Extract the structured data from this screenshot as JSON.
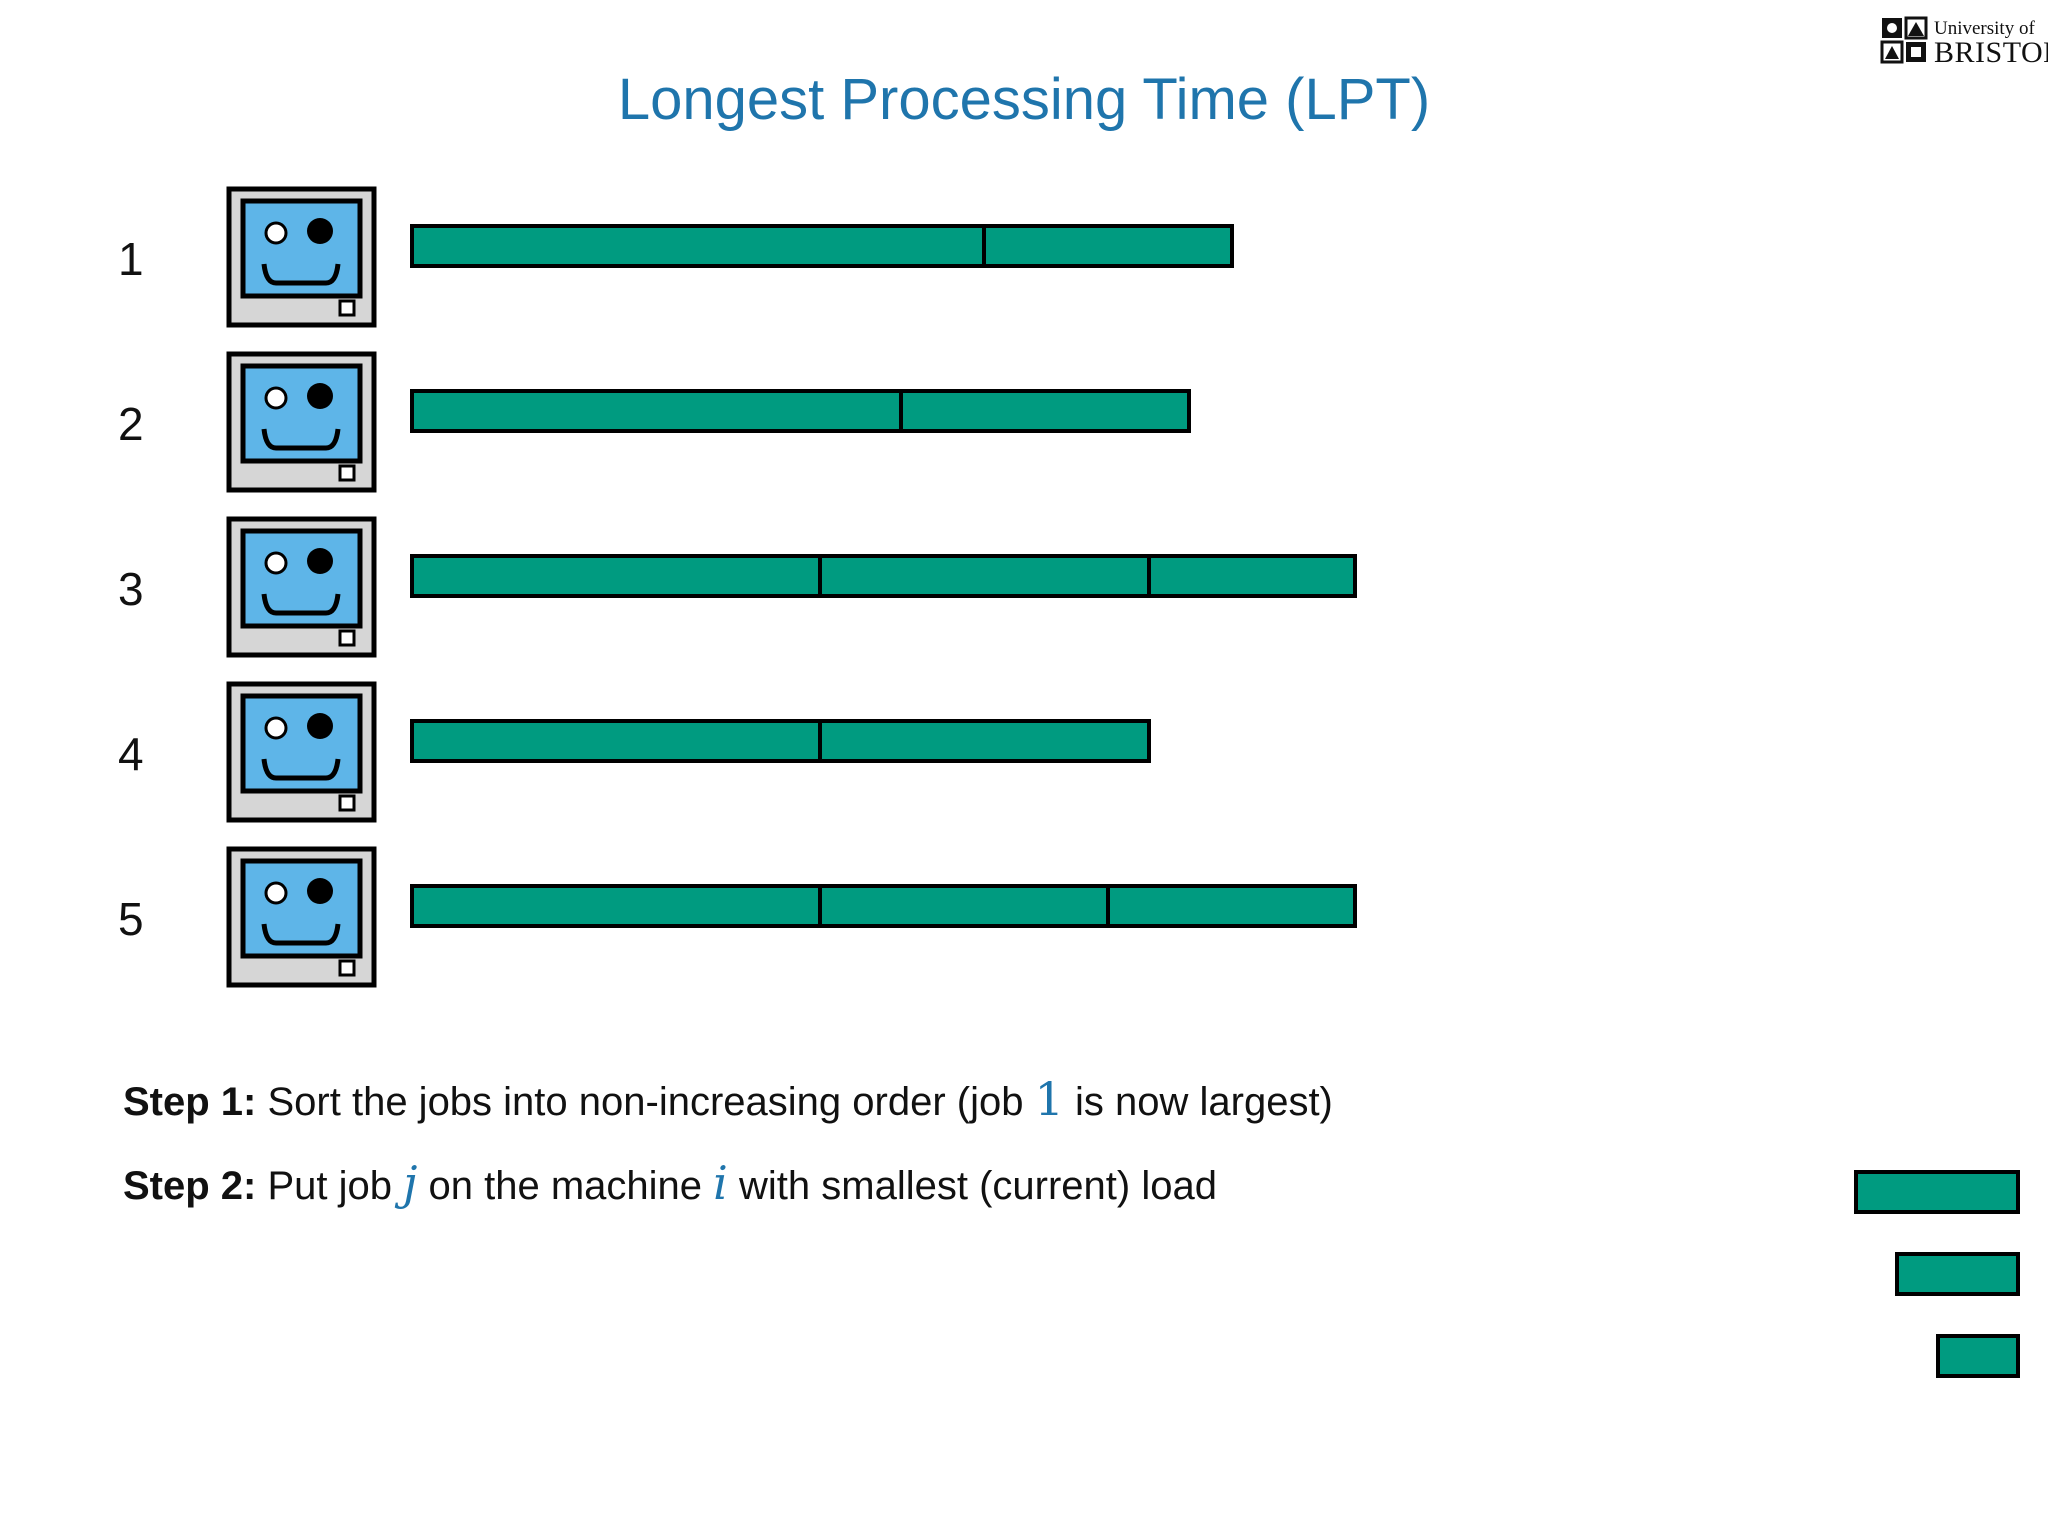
{
  "logo": {
    "line1": "University of",
    "line2": "BRISTOL"
  },
  "title": "Longest Processing Time (LPT)",
  "colors": {
    "title": "#1f75ac",
    "job": "#009b80",
    "screen": "#5eb5e8",
    "monitor": "#d6d6d6",
    "outline": "#000000"
  },
  "machines": [
    {
      "label": "1",
      "jobs": [
        {
          "length": 5.76
        },
        {
          "length": 2.48
        }
      ]
    },
    {
      "label": "2",
      "jobs": [
        {
          "length": 4.93
        },
        {
          "length": 2.88
        }
      ]
    },
    {
      "label": "3",
      "jobs": [
        {
          "length": 4.12
        },
        {
          "length": 3.29
        },
        {
          "length": 2.06
        }
      ]
    },
    {
      "label": "4",
      "jobs": [
        {
          "length": 4.12
        },
        {
          "length": 3.29
        }
      ]
    },
    {
      "label": "5",
      "jobs": [
        {
          "length": 4.12
        },
        {
          "length": 2.88
        },
        {
          "length": 2.47
        }
      ]
    }
  ],
  "steps": [
    {
      "label": "Step 1:",
      "text_before": "Sort the jobs into non-increasing order (job",
      "math": "1",
      "text_after": "is now largest)"
    },
    {
      "label": "Step 2:",
      "text_before": "Put job",
      "math1": "j",
      "text_middle": "on the machine",
      "math2": "i",
      "text_after": "with smallest (current) load"
    }
  ],
  "pending_jobs": [
    {
      "length": 1.66
    },
    {
      "length": 1.25
    },
    {
      "length": 0.84
    }
  ]
}
